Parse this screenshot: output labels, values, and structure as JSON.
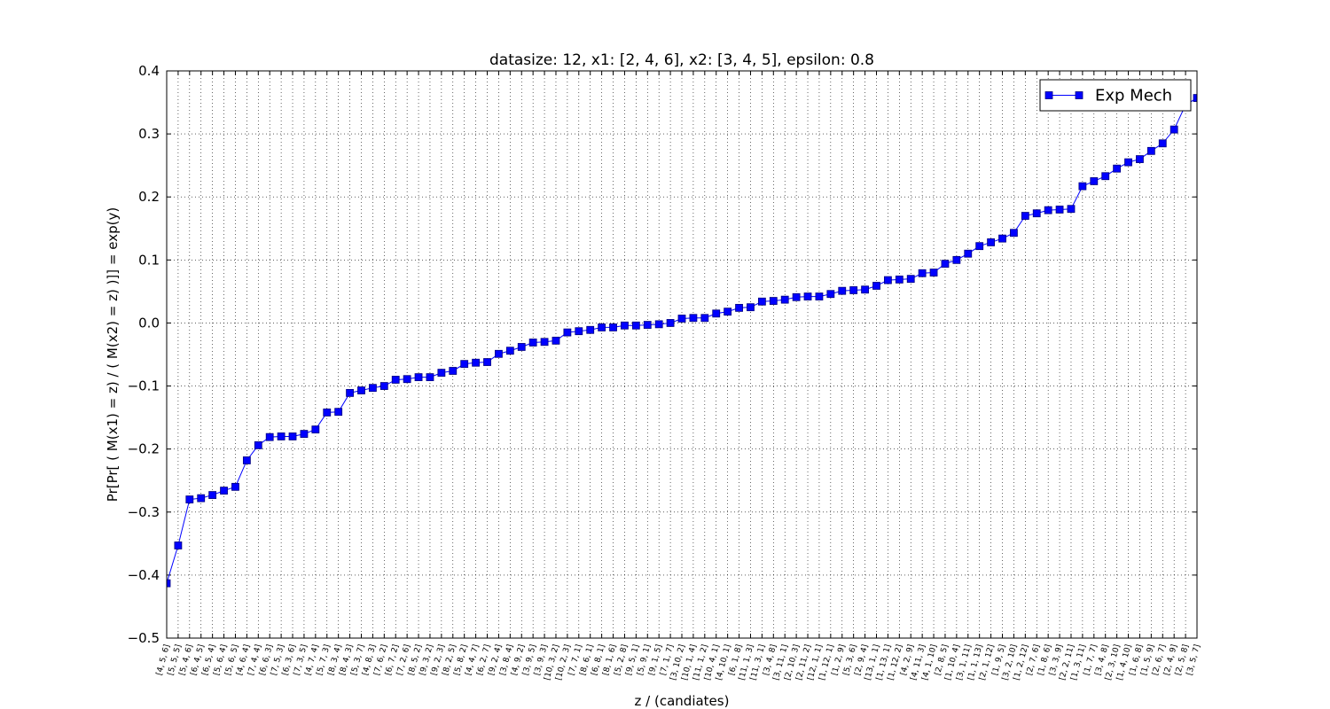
{
  "chart_data": {
    "type": "line",
    "title": "datasize: 12, x1: [2, 4, 6], x2: [3, 4, 5], epsilon: 0.8",
    "xlabel": "z / (candiates)",
    "ylabel": "Pr[Pr[ ( M(x1) = z) / ( M(x2) = z) )]] = exp(y)",
    "categories": [
      "[4, 5, 6]",
      "[5, 5, 5]",
      "[5, 4, 6]",
      "[6, 4, 5]",
      "[6, 5, 4]",
      "[5, 6, 4]",
      "[5, 6, 5]",
      "[4, 6, 4]",
      "[7, 4, 4]",
      "[6, 6, 3]",
      "[7, 5, 3]",
      "[6, 3, 6]",
      "[7, 3, 5]",
      "[4, 7, 4]",
      "[5, 7, 3]",
      "[8, 3, 4]",
      "[8, 4, 3]",
      "[5, 3, 7]",
      "[4, 8, 3]",
      "[7, 6, 2]",
      "[6, 7, 2]",
      "[7, 2, 6]",
      "[8, 5, 2]",
      "[9, 3, 2]",
      "[9, 2, 3]",
      "[8, 2, 5]",
      "[5, 8, 2]",
      "[4, 4, 7]",
      "[6, 2, 7]",
      "[9, 2, 4]",
      "[3, 8, 4]",
      "[4, 9, 2]",
      "[3, 9, 5]",
      "[3, 9, 3]",
      "[10, 3, 2]",
      "[10, 2, 3]",
      "[7, 7, 1]",
      "[8, 6, 1]",
      "[6, 8, 1]",
      "[8, 1, 6]",
      "[5, 2, 8]",
      "[9, 5, 1]",
      "[5, 9, 1]",
      "[9, 1, 5]",
      "[7, 1, 7]",
      "[3, 10, 2]",
      "[10, 1, 4]",
      "[11, 1, 2]",
      "[10, 4, 1]",
      "[4, 10, 1]",
      "[6, 1, 8]",
      "[11, 1, 3]",
      "[11, 3, 1]",
      "[3, 4, 8]",
      "[3, 11, 1]",
      "[2, 10, 3]",
      "[2, 11, 2]",
      "[12, 1, 1]",
      "[1, 12, 1]",
      "[1, 2, 9]",
      "[5, 3, 6]",
      "[2, 9, 4]",
      "[13, 1, 1]",
      "[1, 13, 1]",
      "[1, 12, 2]",
      "[4, 2, 9]",
      "[4, 11, 3]",
      "[4, 1, 10]",
      "[2, 8, 5]",
      "[1, 10, 4]",
      "[3, 1, 11]",
      "[1, 1, 13]",
      "[2, 1, 12]",
      "[1, 9, 5]",
      "[3, 2, 10]",
      "[1, 2, 12]",
      "[2, 7, 6]",
      "[1, 8, 6]",
      "[3, 3, 9]",
      "[2, 2, 11]",
      "[1, 3, 11]",
      "[1, 7, 7]",
      "[3, 4, 8]",
      "[2, 3, 10]",
      "[1, 4, 10]",
      "[1, 6, 8]",
      "[1, 5, 9]",
      "[2, 6, 7]",
      "[2, 4, 9]",
      "[2, 5, 8]",
      "[3, 5, 7]"
    ],
    "series": [
      {
        "name": "Exp Mech",
        "color": "#0000ff",
        "values": [
          -0.413,
          -0.353,
          -0.28,
          -0.278,
          -0.273,
          -0.266,
          -0.26,
          -0.218,
          -0.194,
          -0.181,
          -0.18,
          -0.18,
          -0.176,
          -0.169,
          -0.142,
          -0.141,
          -0.111,
          -0.107,
          -0.103,
          -0.1,
          -0.09,
          -0.089,
          -0.086,
          -0.086,
          -0.079,
          -0.076,
          -0.065,
          -0.063,
          -0.062,
          -0.049,
          -0.044,
          -0.038,
          -0.031,
          -0.03,
          -0.028,
          -0.015,
          -0.013,
          -0.011,
          -0.007,
          -0.007,
          -0.004,
          -0.004,
          -0.003,
          -0.002,
          0.0,
          0.007,
          0.008,
          0.008,
          0.015,
          0.018,
          0.024,
          0.025,
          0.034,
          0.035,
          0.037,
          0.041,
          0.042,
          0.042,
          0.046,
          0.051,
          0.052,
          0.053,
          0.059,
          0.068,
          0.069,
          0.07,
          0.079,
          0.08,
          0.094,
          0.1,
          0.11,
          0.122,
          0.128,
          0.134,
          0.143,
          0.17,
          0.174,
          0.179,
          0.18,
          0.181,
          0.217,
          0.225,
          0.233,
          0.245,
          0.255,
          0.26,
          0.273,
          0.285,
          0.307,
          0.346,
          0.357
        ]
      }
    ],
    "ylim": [
      -0.5,
      0.4
    ],
    "yticks": [
      {
        "value": -0.5,
        "label": "−0.5"
      },
      {
        "value": -0.4,
        "label": "−0.4"
      },
      {
        "value": -0.3,
        "label": "−0.3"
      },
      {
        "value": -0.2,
        "label": "−0.2"
      },
      {
        "value": -0.1,
        "label": "−0.1"
      },
      {
        "value": 0,
        "label": "0.0"
      },
      0.1,
      0.2,
      0.3,
      0.4
    ],
    "grid": true,
    "legend": "upper right"
  }
}
